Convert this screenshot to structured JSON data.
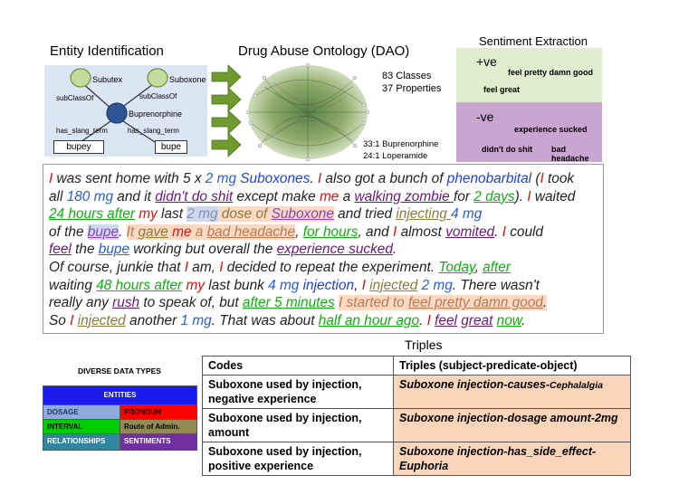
{
  "titles": {
    "entity": "Entity Identification",
    "ontology": "Drug Abuse Ontology (DAO)",
    "sentiment": "Sentiment Extraction",
    "triples": "Triples"
  },
  "entity": {
    "subutex": "Subutex",
    "suboxone": "Suboxone",
    "buprenorphine": "Buprenorphine",
    "subclass_left": "subClassOf",
    "subclass_right": "subClassOf",
    "slang_left": "has_slang_term",
    "slang_right": "has_slang_term",
    "slang_term_left": "bupey",
    "slang_term_right": "bupe"
  },
  "ontology": {
    "classes": "83 Classes",
    "properties": "37 Properties",
    "ratio1": "33:1 Buprenorphine",
    "ratio2": "24:1 Loperamide"
  },
  "sentiment": {
    "pos_label": "+ve",
    "pos_phrases": [
      "feel pretty damn good",
      "feel great"
    ],
    "neg_label": "-ve",
    "neg_phrases": [
      "experience sucked",
      "didn't do shit",
      "bad headache"
    ]
  },
  "post": {
    "l1": [
      "I",
      " was sent home with 5 x ",
      "2 mg",
      " ",
      "Suboxones",
      ". ",
      "I",
      " also got a bunch of ",
      "phenobarbital",
      " (",
      "I",
      " took"
    ],
    "l2": [
      "all ",
      "180 mg",
      " and it ",
      "didn't do shit",
      " except make ",
      "me",
      " a ",
      "walking zombie ",
      "for ",
      "2 days",
      "). ",
      "I",
      " waited"
    ],
    "l3": [
      "24 hours after",
      " ",
      "my",
      " last ",
      "2 mg",
      " dose of ",
      "Suboxone",
      " and tried ",
      "injecting ",
      "4 mg"
    ],
    "l4": [
      "of the ",
      "bupe",
      ". ",
      "It ",
      "gave",
      " ",
      "me",
      " a ",
      "bad headache",
      ", ",
      "for hours",
      ", and ",
      "I",
      " almost ",
      "vomited",
      ". ",
      "I",
      " could"
    ],
    "l5": [
      "feel",
      " the ",
      "bupe",
      " working but overall the ",
      "experience sucked",
      "."
    ],
    "l6": [
      "Of course, junkie that ",
      "I",
      " am, ",
      "I",
      " decided to repeat the experiment. ",
      "Today",
      ", ",
      "after"
    ],
    "l7": [
      "waiting ",
      "48 hours after",
      " ",
      "my",
      " last bunk ",
      "4 mg",
      " ",
      "injection",
      ", ",
      "I",
      " ",
      "injected",
      " ",
      "2 mg",
      ". There wasn't"
    ],
    "l8": [
      "really any ",
      "rush",
      " to speak of, but ",
      "after 5 minutes",
      " ",
      "I started to ",
      "feel pretty damn good",
      "."
    ],
    "l9": [
      "So ",
      "I",
      " ",
      "injected",
      " another ",
      "1 mg",
      ". That was about ",
      "half an hour ago",
      ". ",
      "I",
      " ",
      "feel",
      " ",
      "great",
      " ",
      "now",
      "."
    ]
  },
  "legend": {
    "title": "DIVERSE DATA TYPES",
    "entities": "ENTITIES",
    "dosage": "DOSAGE",
    "pronoun": "PRONOUN",
    "interval": "INTERVAL",
    "route": "Route of Admin.",
    "relationships": "RELATIONSHIPS",
    "sentiments": "SENTIMENTS",
    "colors": {
      "entities": "#1a1aee",
      "dosage": "#8faadc",
      "pronoun": "#ff0000",
      "interval": "#00cc00",
      "route": "#948a54",
      "relationships": "#31859c",
      "sentiments": "#7030a0"
    }
  },
  "table": {
    "headers": [
      "Codes",
      "Triples (subject-predicate-object)"
    ],
    "rows": [
      {
        "code": "Suboxone used by injection, negative experience",
        "triple": "Suboxone injection-causes-",
        "triple_tail": "Cephalalgia"
      },
      {
        "code": "Suboxone used by injection, amount",
        "triple": "Suboxone injection-dosage amount-2mg",
        "triple_tail": ""
      },
      {
        "code": "Suboxone used by injection, positive experience",
        "triple": "Suboxone injection-has_side_effect-Euphoria",
        "triple_tail": ""
      }
    ]
  }
}
